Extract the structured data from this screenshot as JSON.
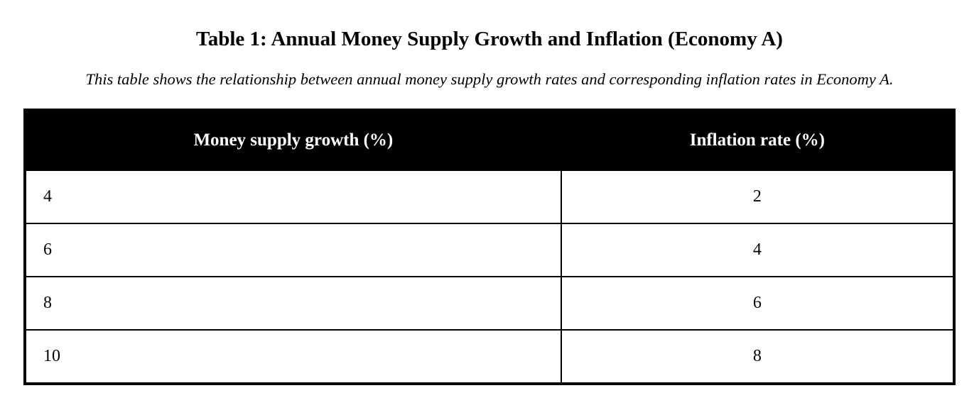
{
  "title": "Table 1: Annual Money Supply Growth and Inflation (Economy A)",
  "subtitle": "This table shows the relationship between annual money supply growth rates and corresponding inflation rates in Economy A.",
  "colors": {
    "header_bg": "#000000",
    "header_text": "#ffffff",
    "border": "#000000",
    "page_bg": "#ffffff"
  },
  "chart_data": {
    "type": "table",
    "title": "Table 1: Annual Money Supply Growth and Inflation (Economy A)",
    "caption": "This table shows the relationship between annual money supply growth rates and corresponding inflation rates in Economy A.",
    "columns": [
      "Money supply growth (%)",
      "Inflation rate (%)"
    ],
    "rows": [
      [
        4,
        2
      ],
      [
        6,
        4
      ],
      [
        8,
        6
      ],
      [
        10,
        8
      ]
    ]
  },
  "table": {
    "headers": {
      "money_supply_growth": "Money supply growth (%)",
      "inflation_rate": "Inflation rate (%)"
    },
    "rows": [
      {
        "money_supply_growth": "4",
        "inflation_rate": "2"
      },
      {
        "money_supply_growth": "6",
        "inflation_rate": "4"
      },
      {
        "money_supply_growth": "8",
        "inflation_rate": "6"
      },
      {
        "money_supply_growth": "10",
        "inflation_rate": "8"
      }
    ]
  }
}
